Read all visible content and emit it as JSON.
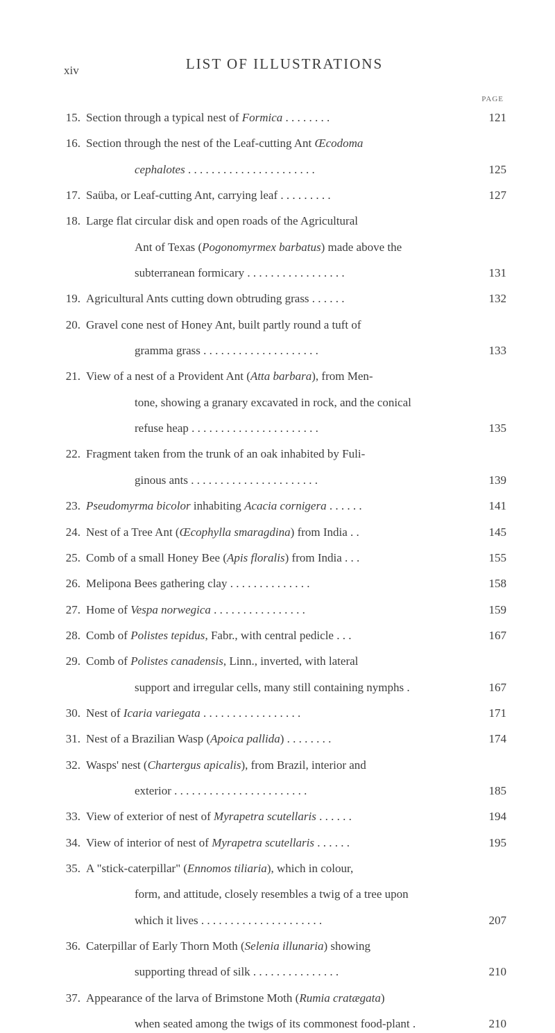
{
  "header": {
    "page_roman": "xiv",
    "title": "LIST OF ILLUSTRATIONS",
    "page_label": "PAGE"
  },
  "entries": [
    {
      "num": "15.",
      "lines": [
        "Section through a typical nest of <i>Formica</i> . . . . . . . ."
      ],
      "page": "121"
    },
    {
      "num": "16.",
      "lines": [
        "Section through the nest of the Leaf-cutting Ant <i>Œcodoma</i>",
        "<i>cephalotes</i> . . . . . . . . . . . . . . . . . . . . . ."
      ],
      "page": "125"
    },
    {
      "num": "17.",
      "lines": [
        "Saüba, or Leaf-cutting Ant, carrying leaf . . . . . . . . ."
      ],
      "page": "127"
    },
    {
      "num": "18.",
      "lines": [
        "Large flat circular disk and open roads of the Agricultural",
        "Ant of Texas (<i>Pogonomyrmex barbatus</i>) made above the",
        "subterranean formicary . . . . . . . . . . . . . . . . ."
      ],
      "page": "131"
    },
    {
      "num": "19.",
      "lines": [
        "Agricultural Ants cutting down obtruding grass . . . . . ."
      ],
      "page": "132"
    },
    {
      "num": "20.",
      "lines": [
        "Gravel cone nest of Honey Ant, built partly round a tuft of",
        "gramma grass . . . . . . . . . . . . . . . . . . . ."
      ],
      "page": "133"
    },
    {
      "num": "21.",
      "lines": [
        "View of a nest of a Provident Ant (<i>Atta barbara</i>), from Men-",
        "tone, showing a granary excavated in rock, and the conical",
        "refuse heap . . . . . . . . . . . . . . . . . . . . . ."
      ],
      "page": "135"
    },
    {
      "num": "22.",
      "lines": [
        "Fragment taken from the trunk of an oak inhabited by Fuli-",
        "ginous ants . . . . . . . . . . . . . . . . . . . . . ."
      ],
      "page": "139"
    },
    {
      "num": "23.",
      "lines": [
        "<i>Pseudomyrma bicolor</i> inhabiting <i>Acacia cornigera</i> . . . . . ."
      ],
      "page": "141"
    },
    {
      "num": "24.",
      "lines": [
        "Nest of a Tree Ant (<i>Œcophylla smaragdina</i>) from India . ."
      ],
      "page": "145"
    },
    {
      "num": "25.",
      "lines": [
        "Comb of a small Honey Bee (<i>Apis floralis</i>) from India . . ."
      ],
      "page": "155"
    },
    {
      "num": "26.",
      "lines": [
        "Melipona Bees gathering clay . . . . . . . . . . . . . ."
      ],
      "page": "158"
    },
    {
      "num": "27.",
      "lines": [
        "Home of <i>Vespa norwegica</i> . . . . . . . . . . . . . . . ."
      ],
      "page": "159"
    },
    {
      "num": "28.",
      "lines": [
        "Comb of <i>Polistes tepidus</i>, Fabr., with central pedicle . . ."
      ],
      "page": "167"
    },
    {
      "num": "29.",
      "lines": [
        "Comb of <i>Polistes canadensis</i>, Linn., inverted, with lateral",
        "support and irregular cells, many still containing nymphs ."
      ],
      "page": "167"
    },
    {
      "num": "30.",
      "lines": [
        "Nest of <i>Icaria variegata</i> . . . . . . . . . . . . . . . . ."
      ],
      "page": "171"
    },
    {
      "num": "31.",
      "lines": [
        "Nest of a Brazilian Wasp (<i>Apoica pallida</i>) . . . . . . . ."
      ],
      "page": "174"
    },
    {
      "num": "32.",
      "lines": [
        "Wasps' nest (<i>Chartergus apicalis</i>), from Brazil, interior and",
        "exterior . . . . . . . . . . . . . . . . . . . . . . ."
      ],
      "page": "185"
    },
    {
      "num": "33.",
      "lines": [
        "View of exterior of nest of <i>Myrapetra scutellaris</i> . . . . . ."
      ],
      "page": "194"
    },
    {
      "num": "34.",
      "lines": [
        "View of interior of nest of <i>Myrapetra scutellaris</i> . . . . . ."
      ],
      "page": "195"
    },
    {
      "num": "35.",
      "lines": [
        "A \"stick-caterpillar\" (<i>Ennomos tiliaria</i>), which in colour,",
        "form, and attitude, closely resembles a twig of a tree upon",
        "which it lives . . . . . . . . . . . . . . . . . . . . ."
      ],
      "page": "207"
    },
    {
      "num": "36.",
      "lines": [
        "Caterpillar of Early Thorn Moth (<i>Selenia illunaria</i>) showing",
        "supporting thread of silk . . . . . . . . . . . . . . ."
      ],
      "page": "210"
    },
    {
      "num": "37.",
      "lines": [
        "Appearance of the larva of Brimstone Moth (<i>Rumia cratægata</i>)",
        "when seated among the twigs of its commonest food-plant ."
      ],
      "page": "210"
    }
  ]
}
